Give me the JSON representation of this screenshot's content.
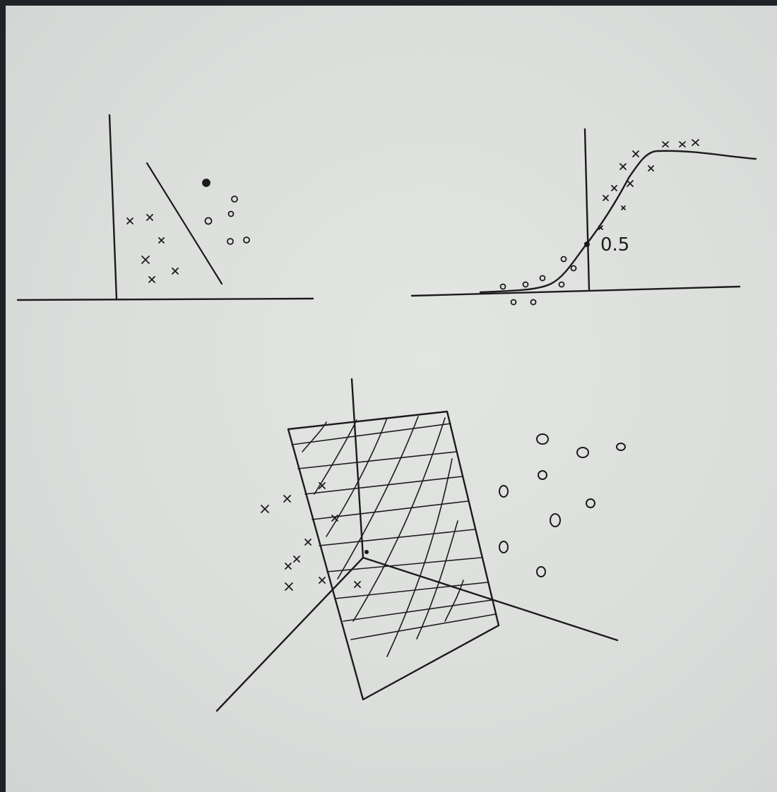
{
  "sketch": {
    "sigmoid_label": "0.5"
  },
  "colors": {
    "paper": "#dcdedc",
    "ink": "#1b1b1b",
    "frame": "#1f2227"
  }
}
